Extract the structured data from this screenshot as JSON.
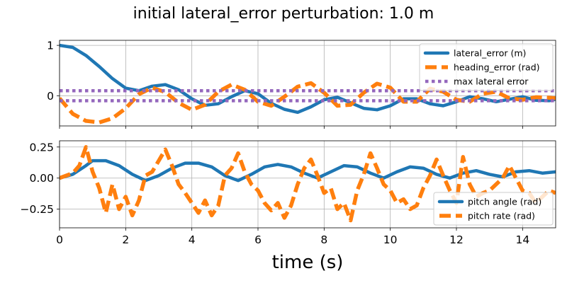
{
  "figure": {
    "title": "initial lateral_error perturbation: 1.0 m",
    "xlabel": "time (s)"
  },
  "colors": {
    "blue": "#1f77b4",
    "orange": "#ff7f0e",
    "purple": "#9467bd",
    "grid": "#b0b0b0"
  },
  "chart_data": [
    {
      "type": "line",
      "xlim": [
        0,
        15
      ],
      "ylim": [
        -0.6,
        1.1
      ],
      "xticks": [
        0,
        2,
        4,
        6,
        8,
        10,
        12,
        14
      ],
      "yticks": [
        0,
        1
      ],
      "ytick_labels": [
        "0",
        "1"
      ],
      "grid": true,
      "legend": "upper-right",
      "series": [
        {
          "name": "lateral_error (m)",
          "color": "#1f77b4",
          "style": "solid",
          "x": [
            0,
            0.4,
            0.8,
            1.2,
            1.6,
            2.0,
            2.4,
            2.8,
            3.2,
            3.6,
            4.0,
            4.4,
            4.8,
            5.2,
            5.6,
            6.0,
            6.4,
            6.8,
            7.2,
            7.6,
            8.0,
            8.4,
            8.8,
            9.2,
            9.6,
            10.0,
            10.4,
            10.8,
            11.2,
            11.6,
            12.0,
            12.4,
            12.8,
            13.2,
            13.6,
            14.0,
            14.4,
            14.8,
            15.0
          ],
          "values": [
            1.0,
            0.96,
            0.8,
            0.58,
            0.34,
            0.15,
            0.1,
            0.19,
            0.22,
            0.12,
            -0.06,
            -0.19,
            -0.16,
            -0.02,
            0.1,
            0.04,
            -0.15,
            -0.27,
            -0.33,
            -0.22,
            -0.08,
            -0.03,
            -0.14,
            -0.25,
            -0.28,
            -0.2,
            -0.06,
            -0.06,
            -0.16,
            -0.2,
            -0.12,
            -0.02,
            -0.06,
            -0.12,
            -0.07,
            -0.02,
            -0.09,
            -0.1,
            -0.07
          ]
        },
        {
          "name": "heading_error (rad)",
          "color": "#ff7f0e",
          "style": "dashed",
          "x": [
            0,
            0.4,
            0.8,
            1.2,
            1.6,
            2.0,
            2.4,
            2.8,
            3.2,
            3.6,
            4.0,
            4.4,
            4.8,
            5.2,
            5.6,
            6.0,
            6.4,
            6.8,
            7.2,
            7.6,
            8.0,
            8.4,
            8.8,
            9.2,
            9.6,
            10.0,
            10.4,
            10.8,
            11.2,
            11.6,
            12.0,
            12.4,
            12.8,
            13.2,
            13.6,
            14.0,
            14.4,
            14.8,
            15.0
          ],
          "values": [
            -0.05,
            -0.36,
            -0.5,
            -0.53,
            -0.45,
            -0.25,
            0.03,
            0.16,
            0.07,
            -0.14,
            -0.28,
            -0.18,
            0.08,
            0.22,
            0.12,
            -0.12,
            -0.2,
            -0.02,
            0.18,
            0.25,
            0.06,
            -0.2,
            -0.18,
            0.06,
            0.24,
            0.16,
            -0.12,
            -0.12,
            0.14,
            0.08,
            -0.08,
            -0.12,
            0.04,
            0.08,
            -0.05,
            -0.08,
            -0.03,
            -0.04,
            -0.05
          ]
        },
        {
          "name": "max lateral error",
          "color": "#9467bd",
          "style": "dotted",
          "x": [
            0,
            15
          ],
          "values": [
            0.1,
            0.1
          ]
        },
        {
          "name": "",
          "color": "#9467bd",
          "style": "dotted",
          "x": [
            0,
            15
          ],
          "values": [
            -0.1,
            -0.1
          ]
        }
      ]
    },
    {
      "type": "line",
      "xlim": [
        0,
        15
      ],
      "ylim": [
        -0.4,
        0.3
      ],
      "xticks": [
        0,
        2,
        4,
        6,
        8,
        10,
        12,
        14
      ],
      "xtick_labels": [
        "0",
        "2",
        "4",
        "6",
        "8",
        "10",
        "12",
        "14"
      ],
      "yticks": [
        -0.25,
        0.0,
        0.25
      ],
      "ytick_labels": [
        "−0.25",
        "0.00",
        "0.25"
      ],
      "grid": true,
      "legend": "lower-right",
      "series": [
        {
          "name": "pitch angle (rad)",
          "color": "#1f77b4",
          "style": "solid",
          "x": [
            0,
            0.4,
            0.8,
            1.0,
            1.4,
            1.8,
            2.2,
            2.6,
            3.0,
            3.4,
            3.8,
            4.2,
            4.6,
            5.0,
            5.4,
            5.8,
            6.2,
            6.6,
            7.0,
            7.4,
            7.8,
            8.2,
            8.6,
            9.0,
            9.4,
            9.8,
            10.2,
            10.6,
            11.0,
            11.4,
            11.8,
            12.2,
            12.6,
            13.0,
            13.4,
            13.8,
            14.2,
            14.6,
            15.0
          ],
          "values": [
            0.0,
            0.03,
            0.1,
            0.14,
            0.14,
            0.1,
            0.03,
            -0.02,
            0.02,
            0.08,
            0.12,
            0.12,
            0.09,
            0.02,
            -0.02,
            0.03,
            0.09,
            0.11,
            0.09,
            0.04,
            0.0,
            0.05,
            0.1,
            0.09,
            0.04,
            0.0,
            0.05,
            0.09,
            0.08,
            0.03,
            0.0,
            0.04,
            0.06,
            0.03,
            0.01,
            0.05,
            0.06,
            0.04,
            0.05
          ]
        },
        {
          "name": "pitch rate (rad)",
          "color": "#ff7f0e",
          "style": "dashed",
          "x": [
            0,
            0.4,
            0.6,
            0.8,
            1.0,
            1.2,
            1.4,
            1.6,
            1.8,
            2.0,
            2.2,
            2.4,
            2.6,
            2.8,
            3.0,
            3.2,
            3.4,
            3.6,
            3.8,
            4.0,
            4.2,
            4.4,
            4.6,
            4.8,
            5.0,
            5.2,
            5.4,
            5.6,
            5.8,
            6.0,
            6.2,
            6.4,
            6.6,
            6.8,
            7.0,
            7.2,
            7.4,
            7.6,
            7.8,
            8.0,
            8.2,
            8.4,
            8.6,
            8.8,
            9.0,
            9.2,
            9.4,
            9.6,
            9.8,
            10.0,
            10.2,
            10.4,
            10.6,
            10.8,
            11.0,
            11.2,
            11.4,
            11.6,
            11.8,
            12.0,
            12.2,
            12.4,
            12.6,
            12.8,
            13.0,
            13.2,
            13.4,
            13.6,
            13.8,
            14.0,
            14.2,
            14.4,
            14.6,
            14.8,
            15.0
          ],
          "values": [
            0.0,
            0.04,
            0.1,
            0.25,
            0.05,
            -0.08,
            -0.28,
            -0.05,
            -0.25,
            -0.15,
            -0.3,
            -0.18,
            0.02,
            0.05,
            0.14,
            0.23,
            0.1,
            -0.05,
            -0.12,
            -0.2,
            -0.28,
            -0.18,
            -0.3,
            -0.22,
            0.02,
            0.08,
            0.2,
            0.05,
            -0.05,
            -0.1,
            -0.2,
            -0.26,
            -0.2,
            -0.32,
            -0.22,
            -0.05,
            0.08,
            0.15,
            0.02,
            -0.12,
            -0.08,
            -0.25,
            -0.2,
            -0.34,
            -0.1,
            0.03,
            0.2,
            0.08,
            -0.05,
            -0.1,
            -0.2,
            -0.17,
            -0.25,
            -0.22,
            -0.08,
            0.02,
            0.15,
            0.02,
            -0.1,
            -0.2,
            0.17,
            -0.05,
            -0.15,
            -0.12,
            -0.1,
            -0.05,
            0.0,
            0.1,
            0.0,
            -0.1,
            -0.12,
            -0.2,
            -0.15,
            -0.1,
            -0.12
          ]
        }
      ]
    }
  ]
}
